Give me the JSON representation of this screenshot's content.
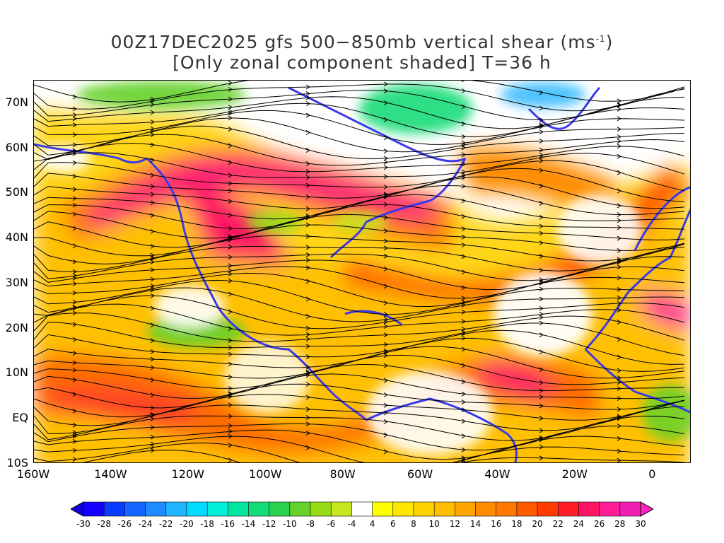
{
  "title": {
    "line1_main": "00Z17DEC2025 gfs 500−850mb vertical shear (ms",
    "line1_sup": "-1",
    "line1_close": ")",
    "line2": "[Only zonal component shaded] T=36 h"
  },
  "map": {
    "lon_range": [
      -160,
      10
    ],
    "lat_range": [
      -10,
      75
    ],
    "y_labels": [
      "70N",
      "60N",
      "50N",
      "40N",
      "30N",
      "20N",
      "10N",
      "EQ",
      "10S"
    ],
    "y_lats": [
      70,
      60,
      50,
      40,
      30,
      20,
      10,
      0,
      -10
    ],
    "x_labels": [
      "160W",
      "140W",
      "120W",
      "100W",
      "80W",
      "60W",
      "40W",
      "20W",
      "0"
    ],
    "x_lons": [
      -160,
      -140,
      -120,
      -100,
      -80,
      -60,
      -40,
      -20,
      0
    ],
    "coastline_color": "#3a3ae8",
    "streamline_color": "#000000"
  },
  "colorbar": {
    "labels": [
      "-30",
      "-28",
      "-26",
      "-24",
      "-22",
      "-20",
      "-18",
      "-16",
      "-14",
      "-12",
      "-10",
      "-8",
      "-6",
      "-4",
      "4",
      "6",
      "8",
      "10",
      "12",
      "14",
      "16",
      "18",
      "20",
      "22",
      "24",
      "26",
      "28",
      "30"
    ],
    "colors": [
      "#1400ff",
      "#0a3cff",
      "#1464ff",
      "#1e8cff",
      "#1eb4ff",
      "#00dcff",
      "#00f0dc",
      "#00e6a0",
      "#14dc78",
      "#28d250",
      "#64d228",
      "#96dc14",
      "#c8e61e",
      "#ffffff",
      "#ffff00",
      "#ffe600",
      "#ffd200",
      "#ffbe00",
      "#ffa500",
      "#ff8c00",
      "#ff7800",
      "#ff5a00",
      "#ff3c00",
      "#ff1e28",
      "#ff1464",
      "#ff1e96",
      "#f01eb4"
    ],
    "under_color": "#1400dc",
    "over_color": "#ff1ebe"
  }
}
